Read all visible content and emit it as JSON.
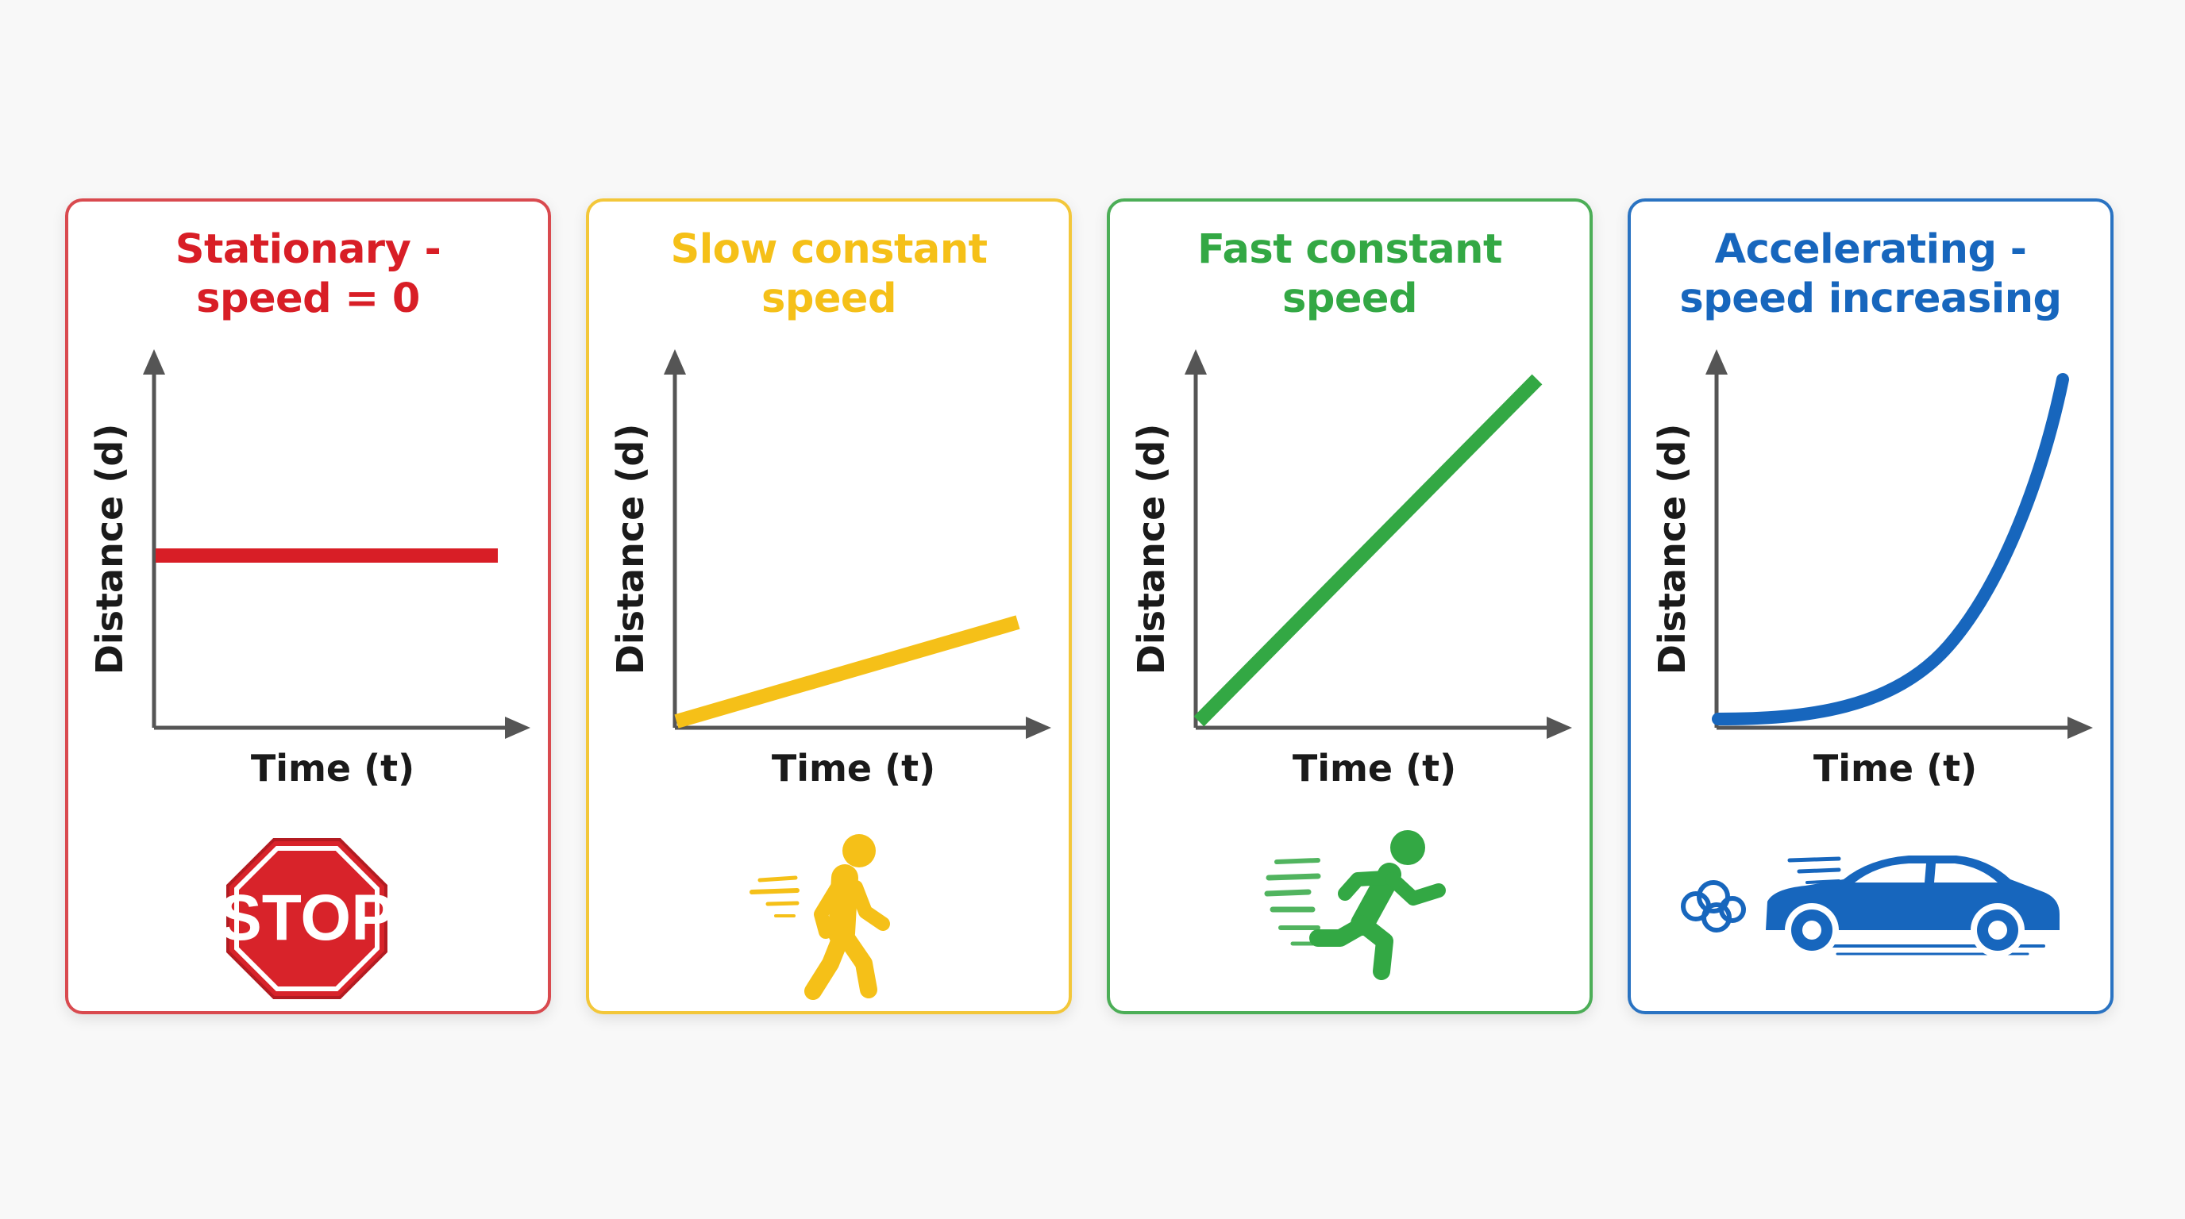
{
  "colors": {
    "stationary": "#d81e26",
    "slow": "#f5c018",
    "fast": "#33a844",
    "accelerating": "#1766bd",
    "axis": "#555555"
  },
  "cards": [
    {
      "title": "Stationary -\nspeed = 0",
      "x_label": "Time (t)",
      "y_label": "Distance (d)",
      "icon": "stop-sign-icon",
      "icon_text": "STOP"
    },
    {
      "title": "Slow constant\nspeed",
      "x_label": "Time (t)",
      "y_label": "Distance (d)",
      "icon": "walking-person-icon"
    },
    {
      "title": "Fast constant\nspeed",
      "x_label": "Time (t)",
      "y_label": "Distance (d)",
      "icon": "running-person-icon"
    },
    {
      "title": "Accelerating -\nspeed increasing",
      "x_label": "Time (t)",
      "y_label": "Distance (d)",
      "icon": "car-icon"
    }
  ]
}
